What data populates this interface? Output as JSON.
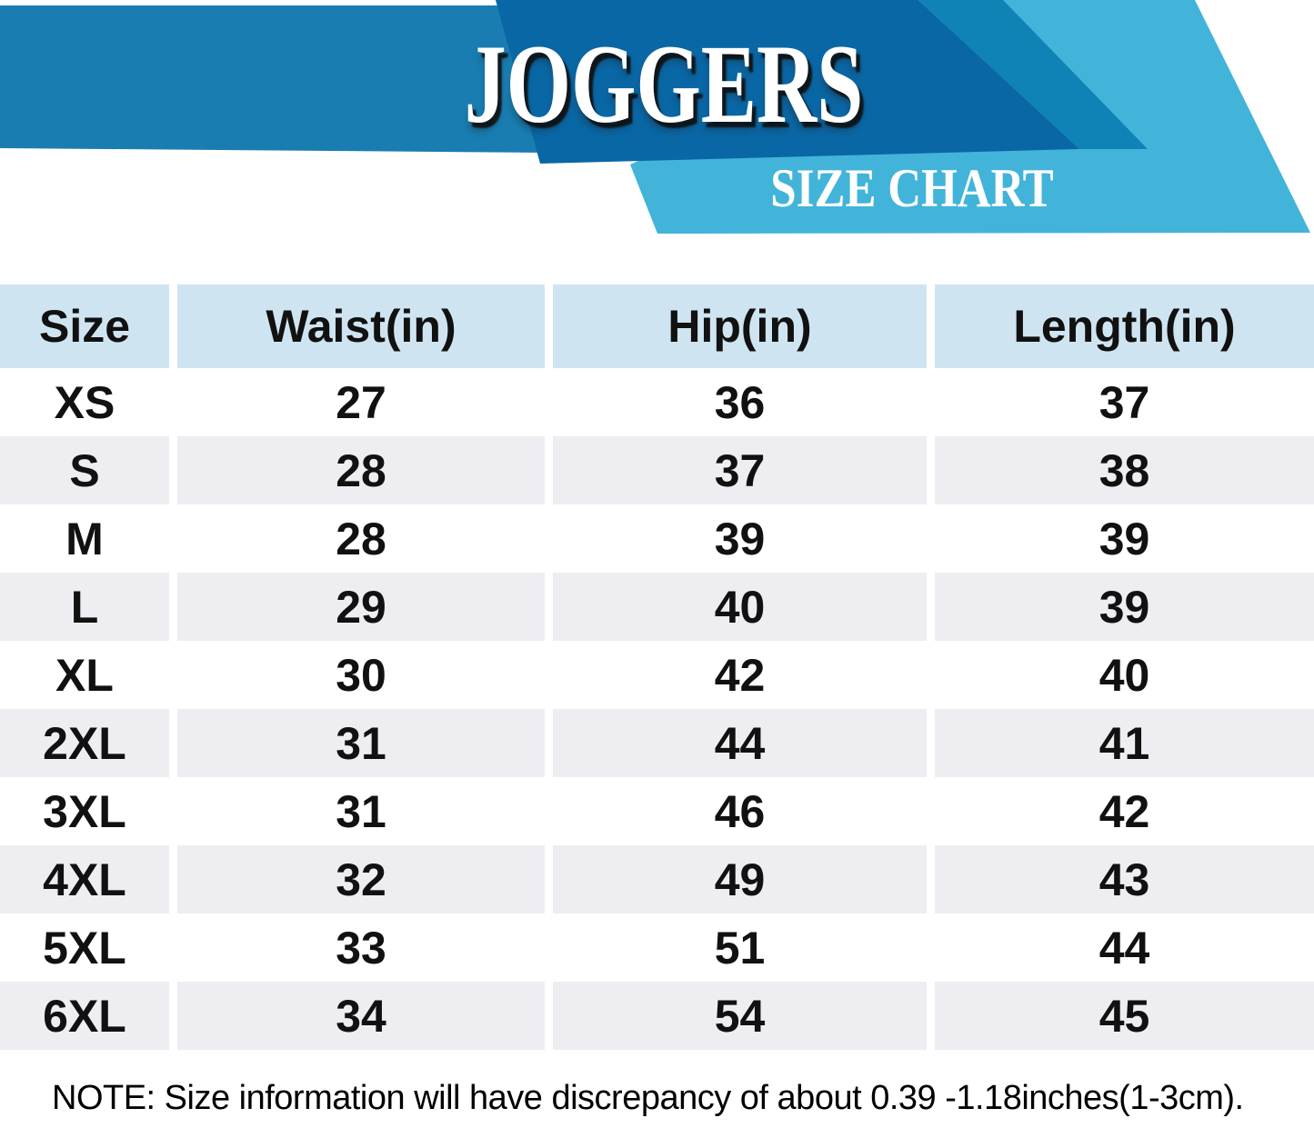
{
  "banner": {
    "title": "JOGGERS",
    "subtitle": "SIZE CHART"
  },
  "table": {
    "headers": [
      "Size",
      "Waist(in)",
      "Hip(in)",
      "Length(in)"
    ],
    "rows": [
      {
        "size": "XS",
        "waist": "27",
        "hip": "36",
        "length": "37"
      },
      {
        "size": "S",
        "waist": "28",
        "hip": "37",
        "length": "38"
      },
      {
        "size": "M",
        "waist": "28",
        "hip": "39",
        "length": "39"
      },
      {
        "size": "L",
        "waist": "29",
        "hip": "40",
        "length": "39"
      },
      {
        "size": "XL",
        "waist": "30",
        "hip": "42",
        "length": "40"
      },
      {
        "size": "2XL",
        "waist": "31",
        "hip": "44",
        "length": "41"
      },
      {
        "size": "3XL",
        "waist": "31",
        "hip": "46",
        "length": "42"
      },
      {
        "size": "4XL",
        "waist": "32",
        "hip": "49",
        "length": "43"
      },
      {
        "size": "5XL",
        "waist": "33",
        "hip": "51",
        "length": "44"
      },
      {
        "size": "6XL",
        "waist": "34",
        "hip": "54",
        "length": "45"
      }
    ]
  },
  "note": {
    "text": "NOTE: Size information will have discrepancy of about 0.39 -1.18inches(1-3cm)."
  },
  "colors": {
    "dark_blue": "#0a67a5",
    "medium_blue": "#197db1",
    "wedge_blue": "#0f82b6",
    "light_cyan": "#42b4d9",
    "header_cell": "#cfe4f1",
    "alt_row": "#eeedf2",
    "text": "#111111"
  }
}
